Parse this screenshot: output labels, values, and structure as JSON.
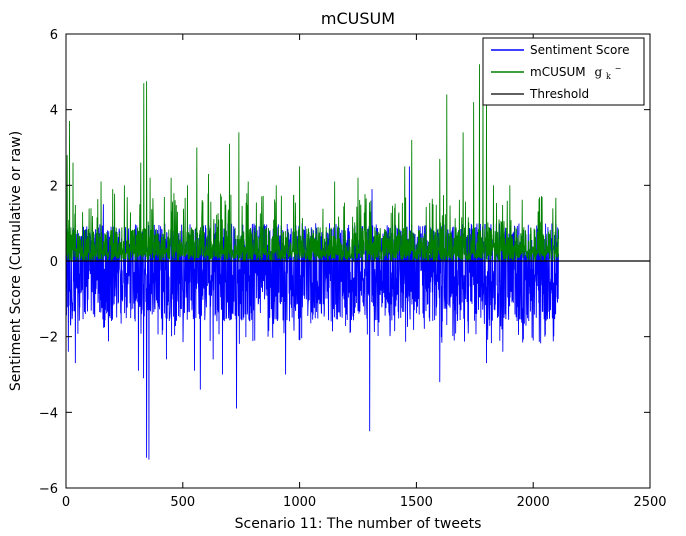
{
  "chart_data": {
    "type": "line",
    "title": "mCUSUM",
    "xlabel": "Scenario  11: The number of tweets",
    "ylabel": "Sentiment Score (Cumulative or raw)",
    "xlim": [
      0,
      2500
    ],
    "ylim": [
      -6,
      6
    ],
    "x_ticks": [
      0,
      500,
      1000,
      1500,
      2000,
      2500
    ],
    "y_ticks": [
      -6,
      -4,
      -2,
      0,
      2,
      4,
      6
    ],
    "x_tick_labels": [
      "0",
      "500",
      "1000",
      "1500",
      "2000",
      "2500"
    ],
    "y_tick_labels": [
      "−6",
      "−4",
      "−2",
      "0",
      "2",
      "4",
      "6"
    ],
    "grid": false,
    "legend_position": "top-right",
    "n_points": 2110,
    "series": [
      {
        "name": "Sentiment Score",
        "color": "#0000ff",
        "style": "dense-raw-signal",
        "typical_range": [
          -1.8,
          1.0
        ],
        "spikes": [
          {
            "x": 10,
            "y": -2.4
          },
          {
            "x": 40,
            "y": -2.7
          },
          {
            "x": 160,
            "y": 1.5
          },
          {
            "x": 310,
            "y": -2.9
          },
          {
            "x": 332,
            "y": -3.1
          },
          {
            "x": 345,
            "y": -5.2
          },
          {
            "x": 355,
            "y": -5.25
          },
          {
            "x": 430,
            "y": -2.6
          },
          {
            "x": 550,
            "y": -2.9
          },
          {
            "x": 575,
            "y": -3.4
          },
          {
            "x": 630,
            "y": -2.6
          },
          {
            "x": 670,
            "y": -3.0
          },
          {
            "x": 730,
            "y": -3.9
          },
          {
            "x": 940,
            "y": -3.0
          },
          {
            "x": 1300,
            "y": -4.5
          },
          {
            "x": 1310,
            "y": 1.9
          },
          {
            "x": 1470,
            "y": 2.5
          },
          {
            "x": 1600,
            "y": -3.2
          },
          {
            "x": 1800,
            "y": -2.7
          },
          {
            "x": 1870,
            "y": -2.4
          },
          {
            "x": 2000,
            "y": -2.1
          },
          {
            "x": 2050,
            "y": -2.0
          }
        ]
      },
      {
        "name": "mCUSUM g_k^-",
        "name_base": "mCUSUM",
        "name_sub": "k",
        "name_sup": "−",
        "color": "#008000",
        "style": "dense-positive-signal",
        "typical_range": [
          0,
          1.2
        ],
        "spikes": [
          {
            "x": 5,
            "y": 2.8
          },
          {
            "x": 15,
            "y": 3.7
          },
          {
            "x": 30,
            "y": 2.6
          },
          {
            "x": 150,
            "y": 2.1
          },
          {
            "x": 200,
            "y": 1.9
          },
          {
            "x": 250,
            "y": 2.0
          },
          {
            "x": 320,
            "y": 2.6
          },
          {
            "x": 333,
            "y": 4.7
          },
          {
            "x": 345,
            "y": 4.75
          },
          {
            "x": 360,
            "y": 2.2
          },
          {
            "x": 450,
            "y": 2.2
          },
          {
            "x": 520,
            "y": 2.0
          },
          {
            "x": 560,
            "y": 3.0
          },
          {
            "x": 610,
            "y": 2.3
          },
          {
            "x": 700,
            "y": 3.1
          },
          {
            "x": 740,
            "y": 3.4
          },
          {
            "x": 780,
            "y": 2.1
          },
          {
            "x": 900,
            "y": 2.0
          },
          {
            "x": 1000,
            "y": 2.5
          },
          {
            "x": 1150,
            "y": 2.1
          },
          {
            "x": 1250,
            "y": 2.2
          },
          {
            "x": 1450,
            "y": 2.5
          },
          {
            "x": 1480,
            "y": 3.2
          },
          {
            "x": 1600,
            "y": 2.7
          },
          {
            "x": 1630,
            "y": 4.4
          },
          {
            "x": 1700,
            "y": 3.4
          },
          {
            "x": 1745,
            "y": 4.2
          },
          {
            "x": 1770,
            "y": 5.2
          },
          {
            "x": 1785,
            "y": 5.4
          },
          {
            "x": 1800,
            "y": 4.4
          },
          {
            "x": 1830,
            "y": 2.0
          },
          {
            "x": 1900,
            "y": 2.0
          }
        ]
      },
      {
        "name": "Threshold",
        "color": "#000000",
        "style": "constant",
        "x": [
          0,
          2500
        ],
        "y": [
          0,
          0
        ]
      }
    ]
  }
}
